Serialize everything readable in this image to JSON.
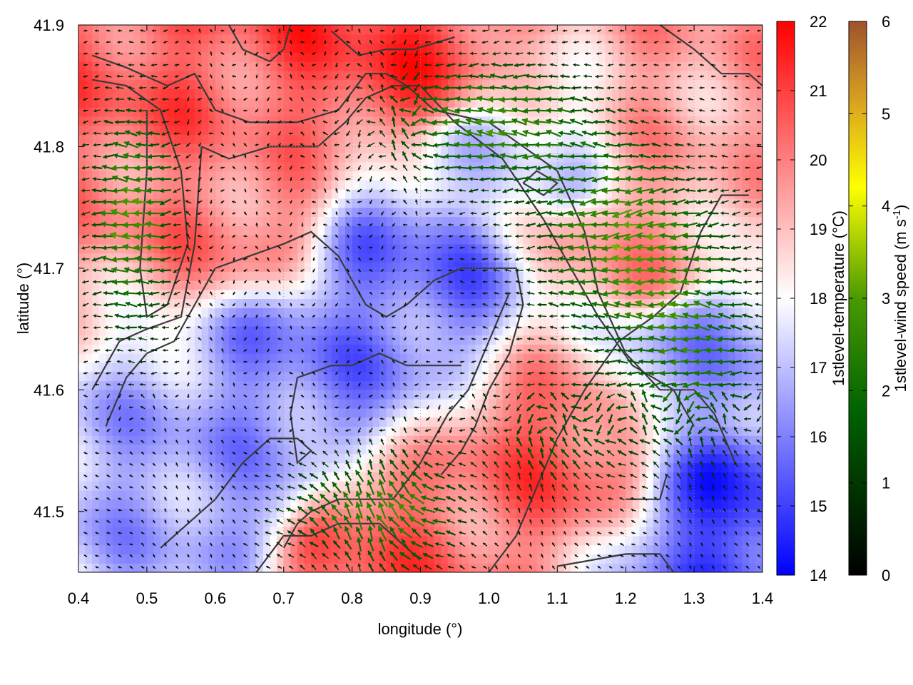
{
  "chart_data": {
    "type": "heatmap",
    "title": "",
    "xlabel": "longitude (°)",
    "ylabel": "latitude (°)",
    "xlim": [
      0.4,
      1.4
    ],
    "ylim": [
      41.45,
      41.9
    ],
    "xticks": [
      "0.4",
      "0.5",
      "0.6",
      "0.7",
      "0.8",
      "0.9",
      "1.0",
      "1.1",
      "1.2",
      "1.3",
      "1.4"
    ],
    "yticks": [
      "41.5",
      "41.6",
      "41.7",
      "41.8",
      "41.9"
    ],
    "grid": true,
    "overlay": "wind vector arrows colored by wind speed; terrain contour lines in dark grey",
    "colorbars": [
      {
        "label": "1stlevel-temperature (°C)",
        "range": [
          14,
          22
        ],
        "ticks": [
          "14",
          "15",
          "16",
          "17",
          "18",
          "19",
          "20",
          "21",
          "22"
        ],
        "colors": [
          "#0000ff",
          "#ffffff",
          "#ff0000"
        ]
      },
      {
        "label": "1stlevel-wind speed (m s-1)",
        "label_main": "1stlevel-wind speed (m s",
        "label_sup": "-1",
        "label_end": ")",
        "range": [
          0,
          6
        ],
        "ticks": [
          "0",
          "1",
          "2",
          "3",
          "4",
          "5",
          "6"
        ],
        "colors": [
          "#000000",
          "#006400",
          "#2e8b00",
          "#9acd32",
          "#ffff00",
          "#daa520",
          "#a0522d"
        ]
      }
    ],
    "temperature_regions": [
      {
        "lon": 0.5,
        "lat": 41.87,
        "temp": 20.5
      },
      {
        "lon": 0.85,
        "lat": 41.88,
        "temp": 21.0
      },
      {
        "lon": 0.62,
        "lat": 41.75,
        "temp": 20.0
      },
      {
        "lon": 0.9,
        "lat": 41.7,
        "temp": 15.8
      },
      {
        "lon": 0.75,
        "lat": 41.62,
        "temp": 16.0
      },
      {
        "lon": 0.62,
        "lat": 41.52,
        "temp": 16.5
      },
      {
        "lon": 0.83,
        "lat": 41.47,
        "temp": 20.5
      },
      {
        "lon": 1.1,
        "lat": 41.55,
        "temp": 20.5
      },
      {
        "lon": 1.2,
        "lat": 41.72,
        "temp": 19.5
      },
      {
        "lon": 1.37,
        "lat": 41.5,
        "temp": 15.0
      },
      {
        "lon": 1.32,
        "lat": 41.62,
        "temp": 16.5
      },
      {
        "lon": 1.05,
        "lat": 41.78,
        "temp": 17.5
      },
      {
        "lon": 1.3,
        "lat": 41.85,
        "temp": 19.5
      }
    ]
  }
}
